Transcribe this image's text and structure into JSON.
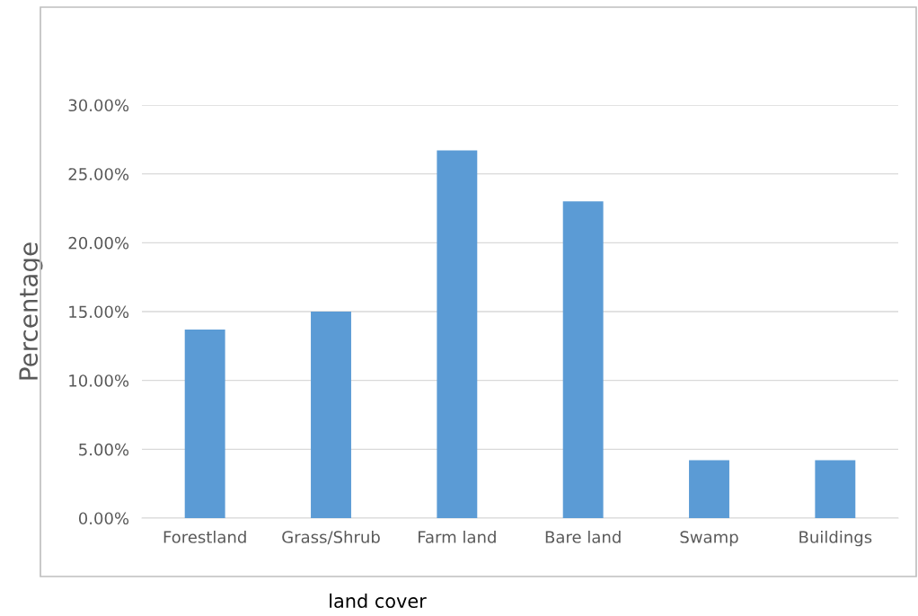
{
  "chart_data": {
    "type": "bar",
    "xlabel": "land cover",
    "ylabel": "Percentage",
    "categories": [
      "Forestland",
      "Grass/Shrub",
      "Farm land",
      "Bare land",
      "Swamp",
      "Buildings"
    ],
    "values": [
      13.7,
      15.0,
      26.7,
      23.0,
      4.2,
      4.2
    ],
    "color": "#5b9bd5",
    "ylim": [
      0,
      30
    ],
    "yticks": [
      {
        "value": 0,
        "label": "0.00%"
      },
      {
        "value": 5,
        "label": "5.00%"
      },
      {
        "value": 10,
        "label": "10.00%"
      },
      {
        "value": 15,
        "label": "15.00%"
      },
      {
        "value": 20,
        "label": "20.00%"
      },
      {
        "value": 25,
        "label": "25.00%"
      },
      {
        "value": 30,
        "label": "30.00%"
      }
    ],
    "grid": "y"
  }
}
